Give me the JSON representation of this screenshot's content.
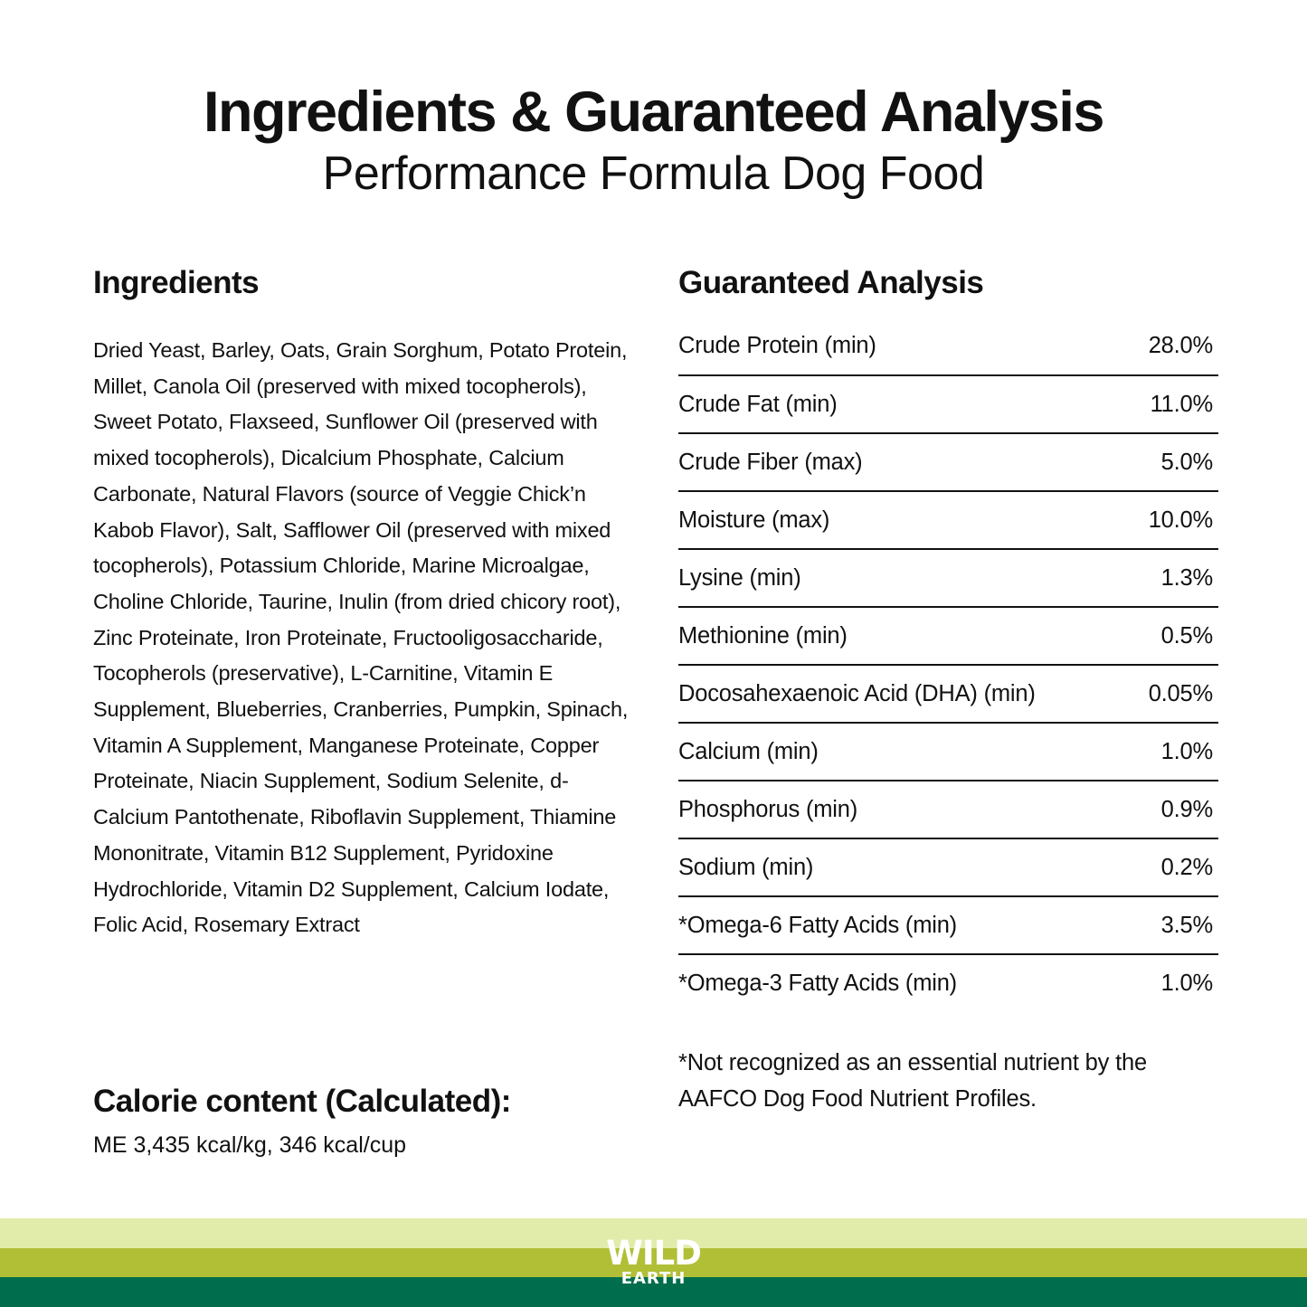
{
  "header": {
    "title": "Ingredients & Guaranteed Analysis",
    "subtitle": "Performance Formula Dog Food"
  },
  "ingredients": {
    "heading": "Ingredients",
    "text": "Dried Yeast, Barley, Oats, Grain Sorghum, Potato Protein, Millet, Canola Oil (preserved with mixed tocopherols), Sweet Potato, Flaxseed, Sunflower Oil (preserved with mixed tocopherols), Dicalcium Phosphate, Calcium Carbonate, Natural Flavors (source of Veggie Chick’n Kabob Flavor), Salt, Safflower Oil (preserved with mixed tocopherols), Potassium Chloride, Marine Microalgae, Choline Chloride, Taurine, Inulin (from dried chicory root), Zinc Proteinate, Iron Proteinate, Fructooligosaccharide, Tocopherols (preservative), L-Carnitine, Vitamin E Supplement, Blueberries, Cranberries, Pumpkin, Spinach, Vitamin A Supplement, Manganese Proteinate, Copper Proteinate, Niacin Supplement, Sodium Selenite, d-Calcium Pantothenate, Riboflavin Supplement, Thiamine Mononitrate, Vitamin B12 Supplement, Pyridoxine Hydrochloride, Vitamin D2 Supplement, Calcium Iodate, Folic Acid, Rosemary Extract"
  },
  "calorie": {
    "heading": "Calorie content (Calculated):",
    "value": "ME 3,435 kcal/kg, 346 kcal/cup"
  },
  "analysis": {
    "heading": "Guaranteed Analysis",
    "rows": [
      {
        "label": "Crude Protein (min)",
        "value": "28.0%"
      },
      {
        "label": "Crude Fat (min)",
        "value": "11.0%"
      },
      {
        "label": "Crude Fiber (max)",
        "value": "5.0%"
      },
      {
        "label": "Moisture (max)",
        "value": "10.0%"
      },
      {
        "label": "Lysine (min)",
        "value": "1.3%"
      },
      {
        "label": "Methionine (min)",
        "value": "0.5%"
      },
      {
        "label": "Docosahexaenoic Acid (DHA) (min)",
        "value": "0.05%"
      },
      {
        "label": "Calcium (min)",
        "value": "1.0%"
      },
      {
        "label": "Phosphorus (min)",
        "value": "0.9%"
      },
      {
        "label": "Sodium (min)",
        "value": "0.2%"
      },
      {
        "label": "*Omega-6 Fatty Acids (min)",
        "value": "3.5%"
      },
      {
        "label": "*Omega-3 Fatty Acids (min)",
        "value": "1.0%"
      }
    ],
    "footnote": "*Not recognized as an essential nutrient by the AAFCO Dog Food Nutrient Profiles."
  },
  "footer": {
    "logo_line1": "WILD",
    "logo_line2": "EARTH",
    "colors": {
      "light": "#e2ecaa",
      "mid": "#b0bf36",
      "dark": "#006e4c"
    }
  }
}
